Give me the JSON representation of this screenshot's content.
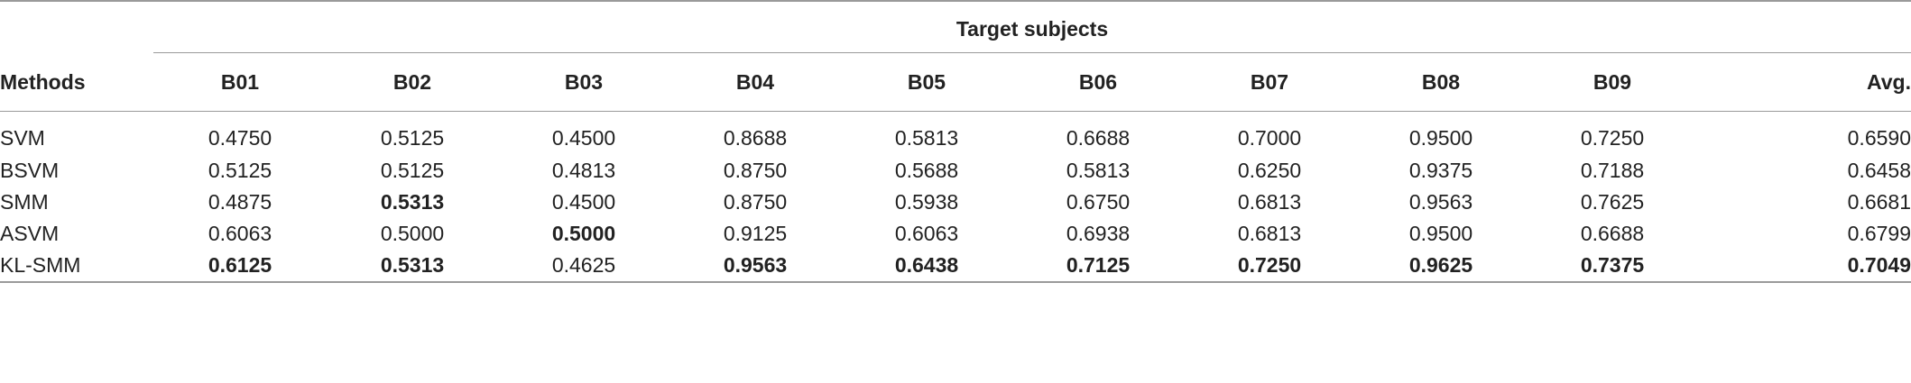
{
  "table": {
    "group_header": "Target subjects",
    "columns": [
      "Methods",
      "B01",
      "B02",
      "B03",
      "B04",
      "B05",
      "B06",
      "B07",
      "B08",
      "B09",
      "Avg."
    ],
    "rows": [
      {
        "method": "SVM",
        "values": [
          "0.4750",
          "0.5125",
          "0.4500",
          "0.8688",
          "0.5813",
          "0.6688",
          "0.7000",
          "0.9500",
          "0.7250",
          "0.6590"
        ],
        "bold": []
      },
      {
        "method": "BSVM",
        "values": [
          "0.5125",
          "0.5125",
          "0.4813",
          "0.8750",
          "0.5688",
          "0.5813",
          "0.6250",
          "0.9375",
          "0.7188",
          "0.6458"
        ],
        "bold": []
      },
      {
        "method": "SMM",
        "values": [
          "0.4875",
          "0.5313",
          "0.4500",
          "0.8750",
          "0.5938",
          "0.6750",
          "0.6813",
          "0.9563",
          "0.7625",
          "0.6681"
        ],
        "bold": [
          1
        ]
      },
      {
        "method": "ASVM",
        "values": [
          "0.6063",
          "0.5000",
          "0.5000",
          "0.9125",
          "0.6063",
          "0.6938",
          "0.6813",
          "0.9500",
          "0.6688",
          "0.6799"
        ],
        "bold": [
          2
        ]
      },
      {
        "method": "KL-SMM",
        "values": [
          "0.6125",
          "0.5313",
          "0.4625",
          "0.9563",
          "0.6438",
          "0.7125",
          "0.7250",
          "0.9625",
          "0.7375",
          "0.7049"
        ],
        "bold": [
          0,
          1,
          3,
          4,
          5,
          6,
          7,
          8,
          9
        ]
      }
    ]
  }
}
